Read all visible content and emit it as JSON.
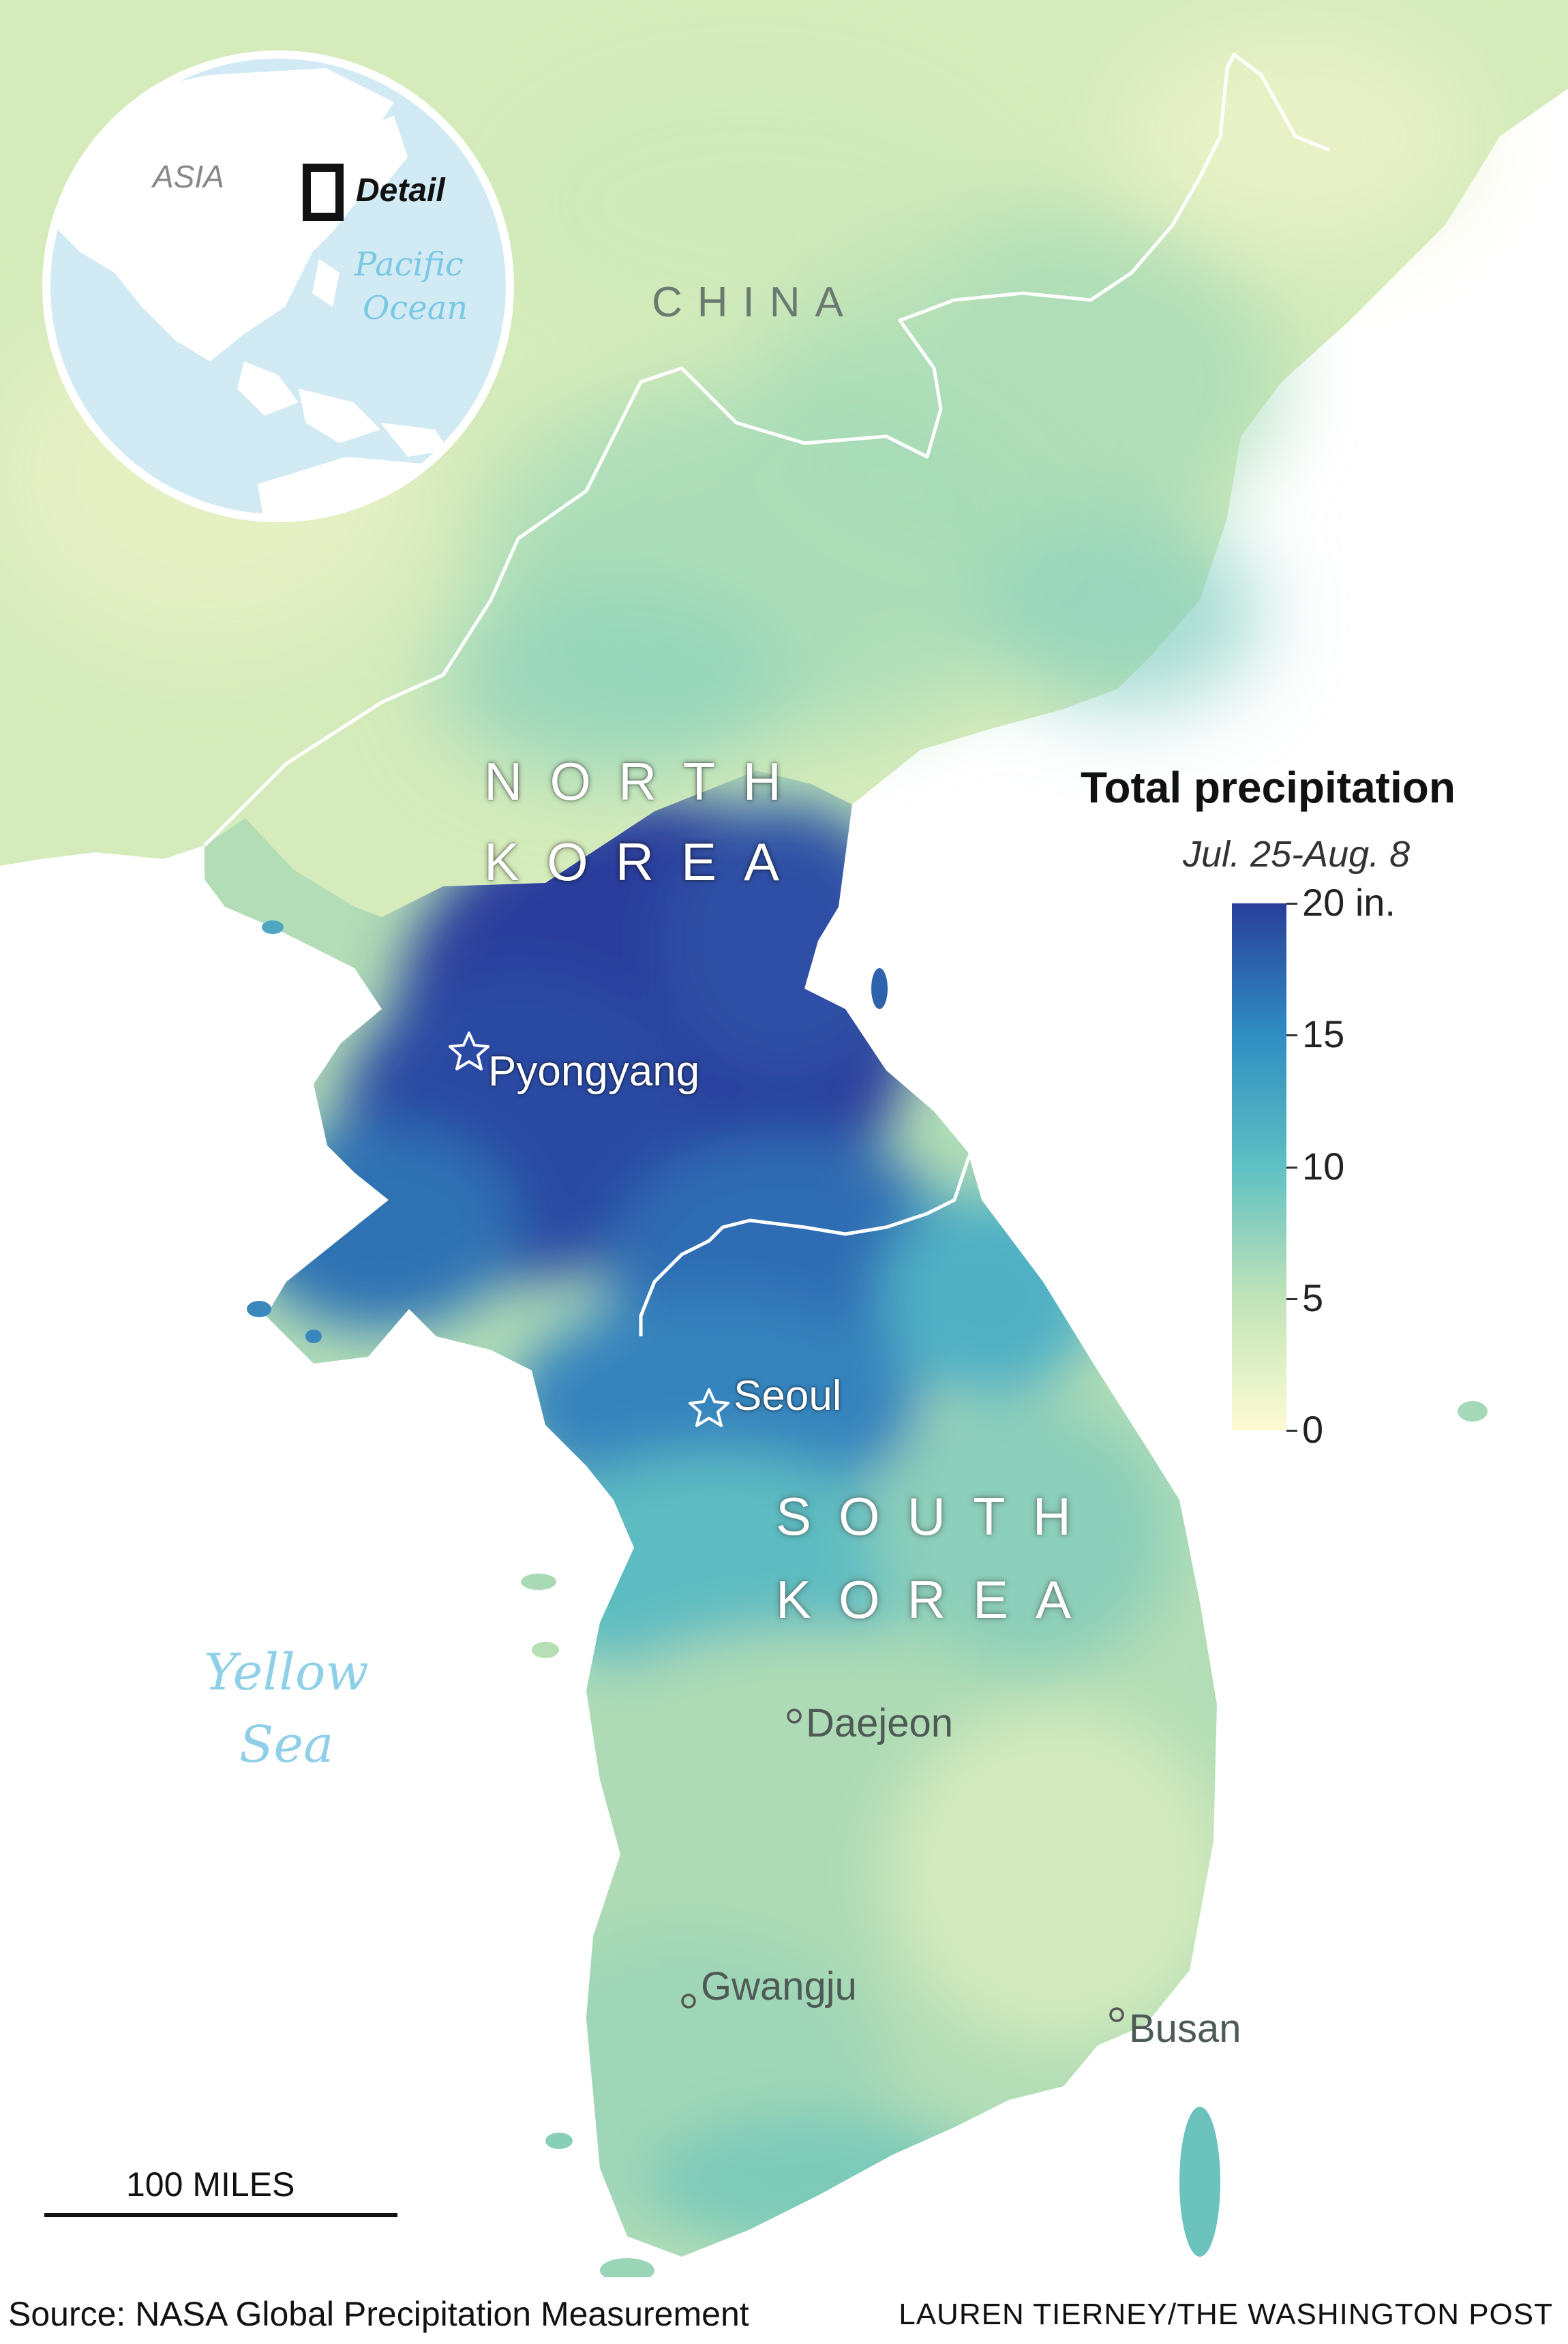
{
  "map": {
    "labels": {
      "china": "CHINA",
      "north_korea_line1": "NORTH",
      "north_korea_line2": "KOREA",
      "south_korea_line1": "SOUTH",
      "south_korea_line2": "KOREA",
      "sea_line1": "Yellow",
      "sea_line2": "Sea"
    },
    "cities": {
      "pyongyang": "Pyongyang",
      "seoul": "Seoul",
      "daejeon": "Daejeon",
      "gwangju": "Gwangju",
      "busan": "Busan"
    },
    "capital_icon": "star-icon",
    "city_icon": "circle-dot-icon"
  },
  "inset": {
    "asia_label": "ASIA",
    "detail_label": "Detail",
    "ocean_line1": "Pacific",
    "ocean_line2": "Ocean"
  },
  "legend": {
    "title": "Total precipitation",
    "subtitle": "Jul. 25-Aug. 8",
    "ticks": [
      "20 in.",
      "15",
      "10",
      "5",
      "0"
    ],
    "scale_min": 0,
    "scale_max": 20,
    "colors": [
      "#fdfbd4",
      "#c2e3b8",
      "#5fc0c3",
      "#2f8ec2",
      "#283f9a"
    ]
  },
  "scale_bar": {
    "label": "100 MILES"
  },
  "footer": {
    "source": "Source: NASA Global Precipitation Measurement",
    "credit": "LAUREN TIERNEY/THE WASHINGTON POST"
  }
}
